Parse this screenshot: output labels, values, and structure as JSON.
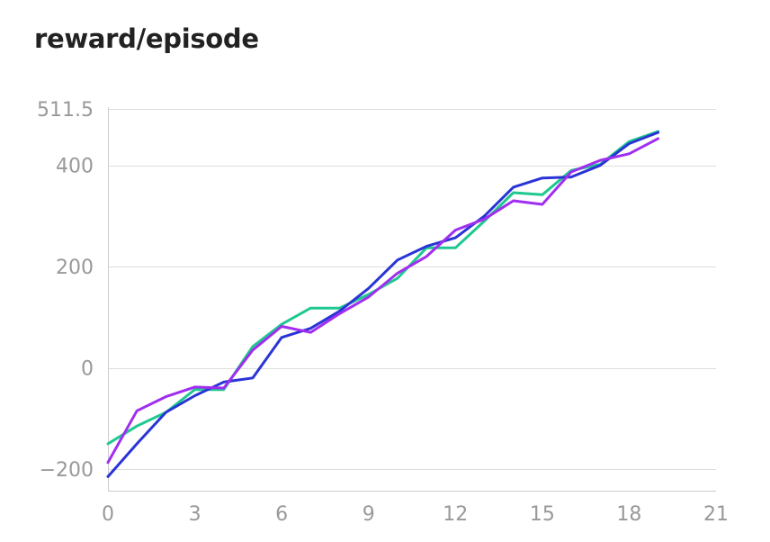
{
  "chart_data": {
    "type": "line",
    "title": "reward/episode",
    "xlabel": "",
    "ylabel": "",
    "xlim": [
      0,
      21
    ],
    "ylim": [
      -240,
      511.5
    ],
    "x_ticks": [
      "0",
      "3",
      "6",
      "9",
      "12",
      "15",
      "18",
      "21"
    ],
    "y_ticks": [
      "511.5",
      "400",
      "200",
      "0",
      "−200"
    ],
    "x_tick_values": [
      0,
      3,
      6,
      9,
      12,
      15,
      18,
      21
    ],
    "y_tick_values": [
      511.5,
      400,
      200,
      0,
      -200
    ],
    "grid": true,
    "x": [
      0,
      1,
      2,
      3,
      4,
      5,
      6,
      7,
      8,
      9,
      10,
      11,
      12,
      13,
      14,
      15,
      16,
      17,
      18,
      19
    ],
    "series": [
      {
        "color": "#1fc891",
        "values": [
          -150,
          -115,
          -88,
          -43,
          -43,
          42,
          86,
          118,
          118,
          145,
          177,
          237,
          237,
          290,
          346,
          342,
          390,
          402,
          447,
          467
        ]
      },
      {
        "color": "#2a34d6",
        "values": [
          -215,
          -150,
          -88,
          -55,
          -28,
          -20,
          60,
          78,
          112,
          157,
          213,
          240,
          257,
          300,
          357,
          375,
          377,
          400,
          443,
          465
        ]
      },
      {
        "color": "#a02ef0",
        "values": [
          -187,
          -85,
          -57,
          -38,
          -40,
          35,
          82,
          70,
          107,
          140,
          187,
          220,
          272,
          294,
          330,
          323,
          387,
          410,
          423,
          453
        ]
      }
    ]
  }
}
